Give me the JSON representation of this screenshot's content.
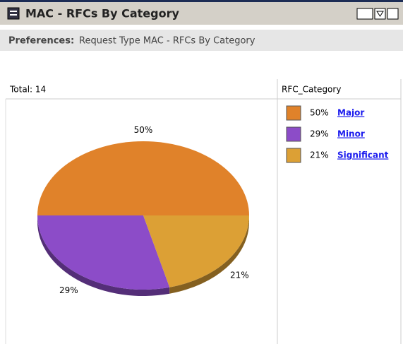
{
  "header": {
    "title": "MAC - RFCs By Category"
  },
  "preferences": {
    "label": "Preferences:",
    "text": "Request Type MAC - RFCs By Category"
  },
  "chart_data": {
    "type": "pie",
    "total": "Total: 14",
    "legend_title": "RFC_Category",
    "categories": [
      "Major",
      "Minor",
      "Significant"
    ],
    "values": [
      50,
      29,
      21
    ],
    "value_labels": [
      "50%",
      "29%",
      "21%"
    ],
    "colors": [
      "#e0822a",
      "#8c4cc8",
      "#dca035"
    ]
  }
}
